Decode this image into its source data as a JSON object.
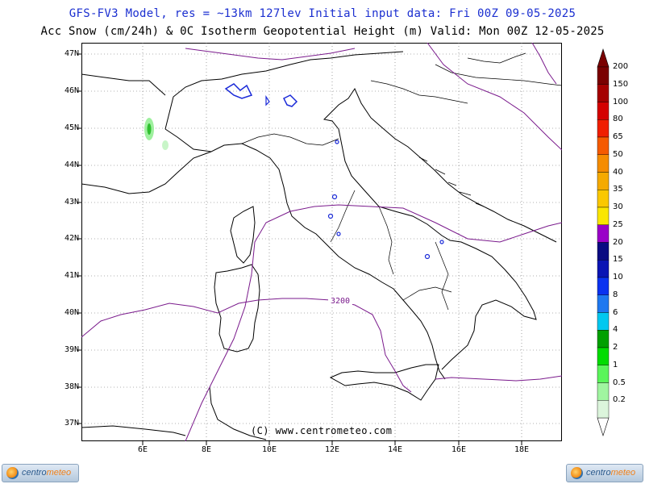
{
  "header": {
    "line1": "GFS-FV3 Model, res = ~13km 127lev   Initial input data: Fri 00Z 09-05-2025",
    "line2": "Acc Snow (cm/24h) & 0C Isotherm Geopotential Height (m)  Valid: Mon 00Z 12-05-2025"
  },
  "axes": {
    "lat_labels": [
      "47N",
      "46N",
      "45N",
      "44N",
      "43N",
      "42N",
      "41N",
      "40N",
      "39N",
      "38N",
      "37N"
    ],
    "lon_labels": [
      "6E",
      "8E",
      "10E",
      "12E",
      "14E",
      "16E",
      "18E"
    ]
  },
  "contour_label": "3200",
  "credit": "(C) www.centrometeo.com",
  "colorbar": {
    "labels": [
      "200",
      "150",
      "100",
      "80",
      "65",
      "50",
      "40",
      "35",
      "30",
      "25",
      "20",
      "15",
      "10",
      "8",
      "6",
      "4",
      "2",
      "1",
      "0.5",
      "0.2"
    ],
    "colors": [
      "#7a0000",
      "#a50000",
      "#d40000",
      "#f01e00",
      "#f55a00",
      "#f58c00",
      "#f5aa00",
      "#fac800",
      "#fae600",
      "#9a00c8",
      "#0a0a82",
      "#0a14b4",
      "#0a32f0",
      "#1e78f0",
      "#00c8f0",
      "#00a000",
      "#00dc00",
      "#5af55a",
      "#a0f5a0",
      "#dcf5dc"
    ]
  },
  "logos": {
    "left": {
      "text_a": "centro",
      "text_b": "meteo"
    },
    "right": {
      "text_a": "centro",
      "text_b": "meteo"
    }
  },
  "colors": {
    "title_blue": "#1b2fd0",
    "isotherm": "#7a1a8c",
    "coast": "#000000",
    "snow_light_green": "#9ef09e"
  }
}
